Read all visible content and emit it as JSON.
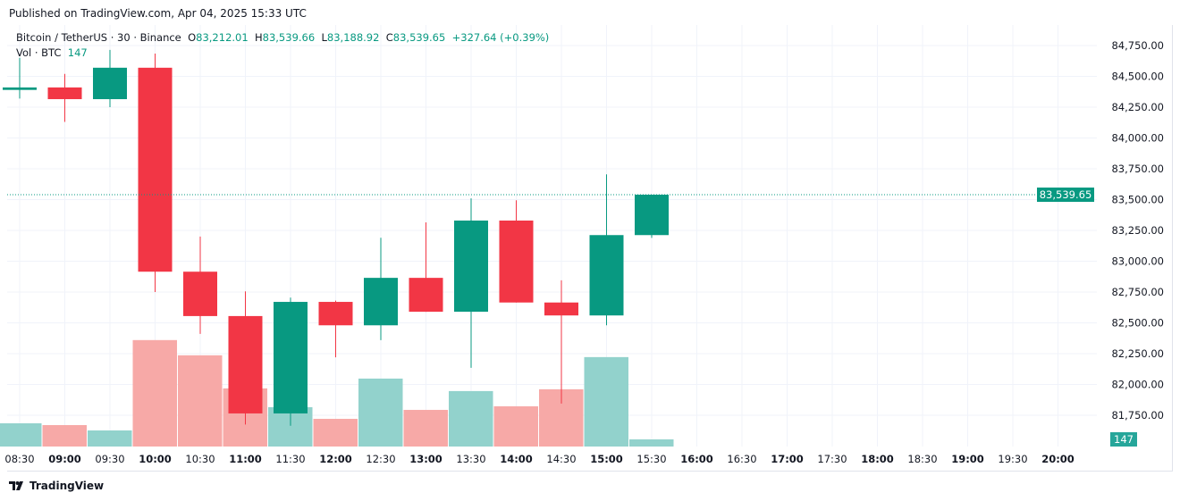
{
  "published": "Published on TradingView.com, Apr 04, 2025 15:33 UTC",
  "legend": {
    "symbol": "Bitcoin / TetherUS · 30 · Binance",
    "o_label": "O",
    "o": "83,212.01",
    "h_label": "H",
    "h": "83,539.66",
    "l_label": "L",
    "l": "83,188.92",
    "c_label": "C",
    "c": "83,539.65",
    "change": "+327.64 (+0.39%)",
    "vol_label": "Vol · BTC",
    "vol": "147"
  },
  "colors": {
    "up": "#089981",
    "down": "#f23645",
    "vol_up": "#92d2cc",
    "vol_down": "#f7a9a7",
    "grid": "#f0f3fa"
  },
  "footer": {
    "logo_text": "TradingView"
  },
  "chart_data": {
    "type": "candlestick",
    "ylim": [
      81500,
      84900
    ],
    "y_ticks": [
      "84,750.00",
      "84,500.00",
      "84,250.00",
      "84,000.00",
      "83,750.00",
      "83,500.00",
      "83,250.00",
      "83,000.00",
      "82,750.00",
      "82,500.00",
      "82,250.00",
      "82,000.00",
      "81,750.00"
    ],
    "last_price_label": "83,539.65",
    "last_volume_label": "147",
    "x_ticks": [
      "08:30",
      "09:00",
      "09:30",
      "10:00",
      "10:30",
      "11:00",
      "11:30",
      "12:00",
      "12:30",
      "13:00",
      "13:30",
      "14:00",
      "14:30",
      "15:00",
      "15:30",
      "16:00",
      "16:30",
      "17:00",
      "17:30",
      "18:00",
      "18:30",
      "19:00",
      "19:30",
      "20:00"
    ],
    "candles": [
      {
        "t": "08:30",
        "o": 84390,
        "h": 84650,
        "l": 84320,
        "c": 84410,
        "v": 478
      },
      {
        "t": "09:00",
        "o": 84410,
        "h": 84520,
        "l": 84130,
        "c": 84315,
        "v": 441
      },
      {
        "t": "09:30",
        "o": 84315,
        "h": 84715,
        "l": 84250,
        "c": 84570,
        "v": 331
      },
      {
        "t": "10:00",
        "o": 84570,
        "h": 84685,
        "l": 82750,
        "c": 82915,
        "v": 2190
      },
      {
        "t": "10:30",
        "o": 82915,
        "h": 83200,
        "l": 82410,
        "c": 82555,
        "v": 1877
      },
      {
        "t": "11:00",
        "o": 82555,
        "h": 82755,
        "l": 81675,
        "c": 81765,
        "v": 1196
      },
      {
        "t": "11:30",
        "o": 81765,
        "h": 82705,
        "l": 81665,
        "c": 82670,
        "v": 810
      },
      {
        "t": "12:00",
        "o": 82670,
        "h": 82680,
        "l": 82220,
        "c": 82480,
        "v": 570
      },
      {
        "t": "12:30",
        "o": 82480,
        "h": 83190,
        "l": 82360,
        "c": 82865,
        "v": 1398
      },
      {
        "t": "13:00",
        "o": 82865,
        "h": 83315,
        "l": 82590,
        "c": 82590,
        "v": 754
      },
      {
        "t": "13:30",
        "o": 82590,
        "h": 83510,
        "l": 82135,
        "c": 83330,
        "v": 1141
      },
      {
        "t": "14:00",
        "o": 83330,
        "h": 83495,
        "l": 82665,
        "c": 82665,
        "v": 828
      },
      {
        "t": "14:30",
        "o": 82665,
        "h": 82845,
        "l": 81845,
        "c": 82560,
        "v": 1178
      },
      {
        "t": "15:00",
        "o": 82560,
        "h": 83705,
        "l": 82480,
        "c": 83212.01,
        "v": 1840
      },
      {
        "t": "15:30",
        "o": 83212.01,
        "h": 83539.66,
        "l": 83188.92,
        "c": 83539.65,
        "v": 147
      }
    ]
  }
}
